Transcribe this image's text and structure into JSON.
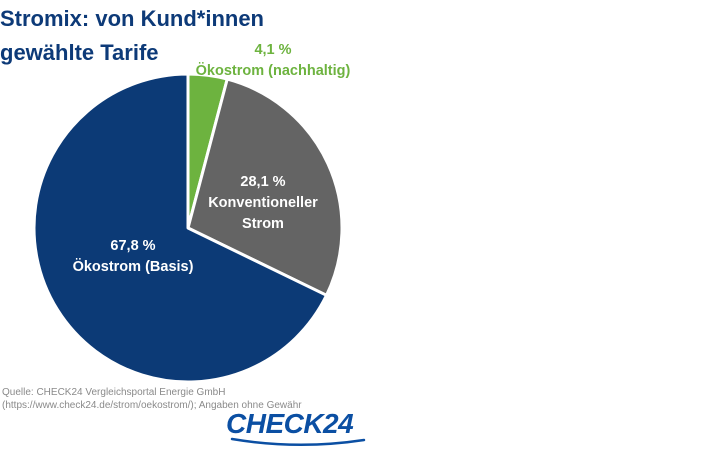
{
  "title_line1": "Stromix: von Kund*innen",
  "title_line2": "gewählte Tarife",
  "chart_data": {
    "type": "pie",
    "title": "Stromix: von Kund*innen gewählte Tarife",
    "slices": [
      {
        "name": "Ökostrom (nachhaltig)",
        "value": 4.1,
        "value_label": "4,1 %",
        "name_lines": [
          "Ökostrom (nachhaltig)"
        ],
        "color": "#6db33f",
        "label_color": "#6db33f",
        "label_position": "outside-top-right"
      },
      {
        "name": "Konventioneller Strom",
        "value": 28.1,
        "value_label": "28,1 %",
        "name_lines": [
          "Konventioneller",
          "Strom"
        ],
        "color": "#646464",
        "label_color": "#ffffff",
        "label_position": "inside"
      },
      {
        "name": "Ökostrom (Basis)",
        "value": 67.8,
        "value_label": "67,8 %",
        "name_lines": [
          "Ökostrom (Basis)"
        ],
        "color": "#0c3a76",
        "label_color": "#ffffff",
        "label_position": "inside"
      }
    ],
    "start": "12 o'clock, clockwise"
  },
  "source_line1": "Quelle: CHECK24 Vergleichsportal Energie GmbH",
  "source_line2": "(https://www.check24.de/strom/oekostrom/); Angaben ohne Gewähr",
  "logo_text": "CHECK24",
  "colors": {
    "title": "#0d3a78",
    "logo": "#0b4fa3",
    "source": "#8a8a8a"
  }
}
